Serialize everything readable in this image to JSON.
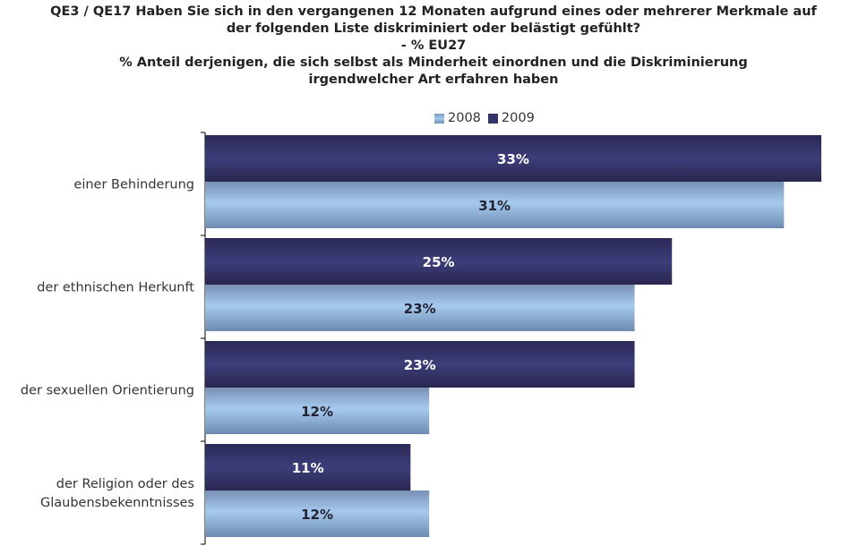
{
  "chart_data": {
    "type": "bar",
    "orientation": "horizontal",
    "title_lines": [
      "QE3 / QE17 Haben Sie sich in den vergangenen 12 Monaten aufgrund eines oder mehrerer Merkmale auf",
      "der folgenden Liste diskriminiert oder belästigt gefühlt?",
      "- % EU27",
      "% Anteil derjenigen, die sich selbst als Minderheit einordnen und die Diskriminierung",
      "irgendwelcher Art erfahren haben"
    ],
    "categories": [
      [
        "einer Behinderung"
      ],
      [
        "der ethnischen Herkunft"
      ],
      [
        "der sexuellen Orientierung"
      ],
      [
        "der Religion oder des",
        "Glaubensbekenntnisses"
      ]
    ],
    "series": [
      {
        "name": "2009",
        "values": [
          33,
          25,
          23,
          11
        ],
        "labels": [
          "33%",
          "25%",
          "23%",
          "11%"
        ]
      },
      {
        "name": "2008",
        "values": [
          31,
          23,
          12,
          12
        ],
        "labels": [
          "31%",
          "23%",
          "12%",
          "12%"
        ]
      }
    ],
    "legend": [
      "2008",
      "2009"
    ],
    "legend_position": "top-center",
    "xlim": [
      0,
      33
    ],
    "grid": false,
    "colors": {
      "2009": "#353468",
      "2008": "#a4c8ec"
    }
  }
}
